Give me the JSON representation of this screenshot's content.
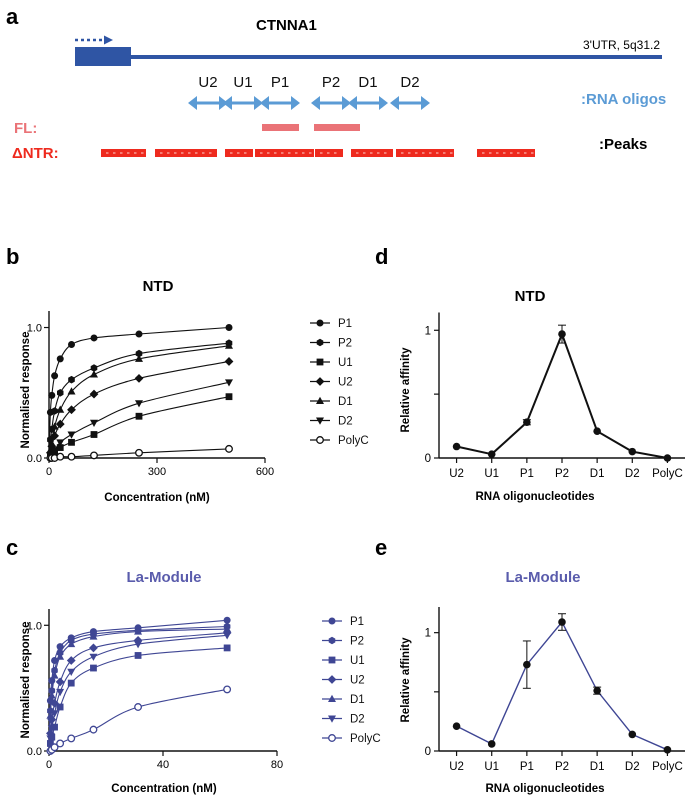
{
  "panel_labels": {
    "a": "a",
    "b": "b",
    "c": "c",
    "d": "d",
    "e": "e"
  },
  "colors": {
    "gene": "#2f55a4",
    "arrows": "#5b9bd5",
    "fl": "#ea7377",
    "ntr": "#ee2a1e",
    "navy": "#3f4694",
    "purple_title": "#5a5cac",
    "black": "#111111"
  },
  "panel_a": {
    "gene_name": "CTNNA1",
    "utr_label": "3'UTR, 5q31.2",
    "oligo_labels": [
      "U2",
      "U1",
      "P1",
      "P2",
      "D1",
      "D2"
    ],
    "oligos_legend": ":RNA oligos",
    "fl_label": "FL:",
    "ntr_label": "ΔNTR:",
    "peaks_legend": ":Peaks"
  },
  "chart_data": [
    {
      "id": "b",
      "type": "scatter",
      "title": "NTD",
      "xlabel": "Concentration (nM)",
      "ylabel": "Normalised response",
      "xlim": [
        0,
        600
      ],
      "ylim": [
        0,
        1.05
      ],
      "xticks": [
        0,
        300,
        600
      ],
      "yticks": [
        0.0,
        1.0
      ],
      "ytick_labels": [
        "0.0",
        "1.0"
      ],
      "legend": "right",
      "x": [
        0,
        3.9,
        7.8,
        15.6,
        31.25,
        62.5,
        125,
        250,
        500
      ],
      "series": [
        {
          "name": "P1",
          "marker": "circle",
          "values": [
            0,
            0.35,
            0.48,
            0.63,
            0.76,
            0.87,
            0.92,
            0.95,
            1.0
          ]
        },
        {
          "name": "P2",
          "marker": "hexagon",
          "values": [
            0,
            0.14,
            0.22,
            0.36,
            0.5,
            0.6,
            0.69,
            0.8,
            0.88
          ]
        },
        {
          "name": "U1",
          "marker": "square",
          "values": [
            0,
            0.01,
            0.02,
            0.04,
            0.08,
            0.12,
            0.18,
            0.32,
            0.47
          ]
        },
        {
          "name": "U2",
          "marker": "diamond",
          "values": [
            0,
            0.04,
            0.09,
            0.17,
            0.26,
            0.37,
            0.49,
            0.61,
            0.74
          ]
        },
        {
          "name": "D1",
          "marker": "triangle",
          "values": [
            0,
            0.06,
            0.11,
            0.24,
            0.37,
            0.51,
            0.64,
            0.76,
            0.86
          ]
        },
        {
          "name": "D2",
          "marker": "triangle-down",
          "values": [
            0,
            0.02,
            0.03,
            0.06,
            0.12,
            0.18,
            0.27,
            0.42,
            0.58
          ]
        },
        {
          "name": "PolyC",
          "marker": "open-circle",
          "values": [
            0,
            0.0,
            0.0,
            0.0,
            0.01,
            0.01,
            0.02,
            0.04,
            0.07
          ]
        }
      ]
    },
    {
      "id": "c",
      "type": "scatter",
      "title": "La-Module",
      "xlabel": "Concentration (nM)",
      "ylabel": "Normalised response",
      "xlim": [
        0,
        80
      ],
      "ylim": [
        0,
        1.05
      ],
      "xticks": [
        0,
        40,
        80
      ],
      "yticks": [
        0.0,
        1.0
      ],
      "ytick_labels": [
        "0.0",
        "1.0"
      ],
      "legend": "right",
      "x": [
        0,
        0.49,
        0.98,
        1.95,
        3.9,
        7.8,
        15.6,
        31.25,
        62.5
      ],
      "series": [
        {
          "name": "P1",
          "marker": "circle",
          "values": [
            0,
            0.4,
            0.56,
            0.72,
            0.83,
            0.9,
            0.95,
            0.98,
            1.04
          ]
        },
        {
          "name": "P2",
          "marker": "hexagon",
          "values": [
            0,
            0.32,
            0.48,
            0.64,
            0.78,
            0.88,
            0.93,
            0.96,
            0.99
          ]
        },
        {
          "name": "U1",
          "marker": "square",
          "values": [
            0,
            0.06,
            0.11,
            0.19,
            0.35,
            0.54,
            0.66,
            0.76,
            0.82
          ]
        },
        {
          "name": "U2",
          "marker": "diamond",
          "values": [
            0,
            0.14,
            0.25,
            0.38,
            0.55,
            0.72,
            0.82,
            0.88,
            0.94
          ]
        },
        {
          "name": "D1",
          "marker": "triangle",
          "values": [
            0,
            0.28,
            0.44,
            0.6,
            0.75,
            0.85,
            0.91,
            0.95,
            0.97
          ]
        },
        {
          "name": "D2",
          "marker": "triangle-down",
          "values": [
            0,
            0.1,
            0.18,
            0.3,
            0.47,
            0.63,
            0.75,
            0.85,
            0.92
          ]
        },
        {
          "name": "PolyC",
          "marker": "open-circle",
          "values": [
            0,
            0.0,
            0.01,
            0.03,
            0.06,
            0.1,
            0.17,
            0.35,
            0.49
          ]
        }
      ]
    },
    {
      "id": "d",
      "type": "line",
      "title": "NTD",
      "xlabel": "RNA oligonucleotides",
      "ylabel": "Relative affinity",
      "categories": [
        "U2",
        "U1",
        "P1",
        "P2",
        "D1",
        "D2",
        "PolyC"
      ],
      "ylim": [
        0,
        1.1
      ],
      "yticks": [
        0,
        0.5,
        1
      ],
      "ytick_labels": [
        "0",
        "",
        "1"
      ],
      "values": [
        0.09,
        0.03,
        0.28,
        0.97,
        0.21,
        0.05,
        0.0
      ],
      "errors": [
        0.01,
        0.01,
        0.02,
        0.07,
        0.01,
        0.01,
        0.0
      ]
    },
    {
      "id": "e",
      "type": "line",
      "title": "La-Module",
      "xlabel": "RNA oligonucleotides",
      "ylabel": "Relative affinity",
      "categories": [
        "U2",
        "U1",
        "P1",
        "P2",
        "D1",
        "D2",
        "PolyC"
      ],
      "ylim": [
        0,
        1.2
      ],
      "yticks": [
        0,
        0.5,
        1
      ],
      "ytick_labels": [
        "0",
        "",
        "1"
      ],
      "values": [
        0.21,
        0.06,
        0.73,
        1.09,
        0.51,
        0.14,
        0.01
      ],
      "errors": [
        0.01,
        0.01,
        0.2,
        0.07,
        0.03,
        0.01,
        0.0
      ]
    }
  ]
}
